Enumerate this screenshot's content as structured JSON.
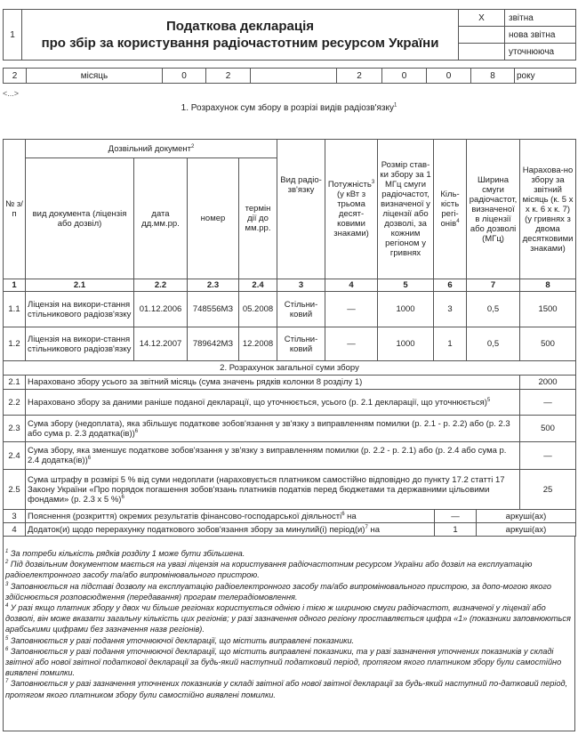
{
  "header": {
    "row_number": "1",
    "title_line1": "Податкова декларація",
    "title_line2": "про збір за користування радіочастотним ресурсом України",
    "types": [
      {
        "mark": "X",
        "label": "звітна"
      },
      {
        "mark": "",
        "label": "нова звітна"
      },
      {
        "mark": "",
        "label": "уточнююча"
      }
    ]
  },
  "period": {
    "row_number": "2",
    "month_label": "місяць",
    "month_digits": [
      "0",
      "2"
    ],
    "year_digits": [
      "2",
      "0",
      "0",
      "8"
    ],
    "year_label": "року"
  },
  "ellipsis": "<...>",
  "section1": {
    "title": "1. Розрахунок сум збору в розрізі видів радіозв'язку",
    "title_sup": "1",
    "headers": {
      "num": "№ з/п",
      "permit_group": "Дозвільний документ",
      "permit_group_sup": "2",
      "doc_type": "вид документа (ліцензія або дозвіл)",
      "date": "дата дд.мм.рр.",
      "number": "номер",
      "term": "термін дії до мм.рр.",
      "radio_type": "Вид радіо-зв'язку",
      "power": "Потужність",
      "power_sup": "3",
      "power_rest": "(у кВт з трьома десят-ковими знаками)",
      "rate": "Розмір став-ки збору за 1 МГц смуги радіочастот, визначеної у ліцензії або дозволі, за кожним регіоном у гривнях",
      "regions": "Кіль-кість регі-онів",
      "regions_sup": "4",
      "bandwidth": "Ширина смуги радіочастот, визначеної в ліцензії або дозволі (МГц)",
      "accrued": "Нарахова-но збору за звітний місяць (к. 5 х х к. 6 х к. 7) (у гривнях з двома десятковими знаками)"
    },
    "column_numbers": [
      "1",
      "2.1",
      "2.2",
      "2.3",
      "2.4",
      "3",
      "4",
      "5",
      "6",
      "7",
      "8"
    ],
    "rows": [
      {
        "num": "1.1",
        "doc_type": "Ліцензія на викори-стання стільникового радіозв'язку",
        "date": "01.12.2006",
        "number": "748556МЗ",
        "term": "05.2008",
        "radio_type": "Стільни-ковий",
        "power": "—",
        "rate": "1000",
        "regions": "3",
        "bandwidth": "0,5",
        "accrued": "1500"
      },
      {
        "num": "1.2",
        "doc_type": "Ліцензія на викори-стання стільникового радіозв'язку",
        "date": "14.12.2007",
        "number": "789642МЗ",
        "term": "12.2008",
        "radio_type": "Стільни-ковий",
        "power": "—",
        "rate": "1000",
        "regions": "1",
        "bandwidth": "0,5",
        "accrued": "500"
      }
    ]
  },
  "section2": {
    "title": "2. Розрахунок загальної суми збору",
    "rows": [
      {
        "num": "2.1",
        "text": "Нараховано збору усього за звітний місяць (сума значень рядків колонки 8 розділу 1)",
        "sup": "",
        "value": "2000"
      },
      {
        "num": "2.2",
        "text": "Нараховано збору за даними раніше поданої декларації, що уточнюється, усього (р. 2.1 декларації, що уточнюється)",
        "sup": "5",
        "value": "—"
      },
      {
        "num": "2.3",
        "text": "Сума збору (недоплата), яка збільшує податкове зобов'язання у зв'язку з виправленням помилки (р. 2.1 - р. 2.2) або (р. 2.3 або сума р. 2.3 додатка(ів))",
        "sup": "6",
        "value": "500"
      },
      {
        "num": "2.4",
        "text": "Сума збору, яка зменшує податкове зобов'язання у зв'язку з виправленням помилки (р. 2.2 - р. 2.1) або (р. 2.4 або сума р. 2.4 додатка(ів))",
        "sup": "6",
        "value": "—"
      },
      {
        "num": "2.5",
        "text": "Сума штрафу в розмірі 5 % від суми недоплати (нараховується платником самостійно відповідно до пункту 17.2 статті 17 Закону України «Про порядок погашення зобов'язань платників податків перед бюджетами та державними цільовими фондами» (р. 2.3 х 5 %)",
        "sup": "6",
        "value": "25"
      }
    ]
  },
  "extra_rows": [
    {
      "num": "3",
      "text": "Пояснення (розкриття) окремих результатів фінансово-господарської діяльності",
      "sup": "6",
      "after": " на",
      "count": "—",
      "unit": "аркуші(ах)"
    },
    {
      "num": "4",
      "text": "Додаток(и) щодо перерахунку податкового зобов'язання збору за минулий(і) період(и)",
      "sup": "7",
      "after": " на",
      "count": "1",
      "unit": "аркуші(ах)"
    }
  ],
  "footnotes": [
    {
      "sup": "1",
      "text": "За потреби кількість рядків розділу 1 може бути збільшена."
    },
    {
      "sup": "2",
      "text": "Під дозвільним документом мається на увазі ліцензія на користування радіочастотним ресурсом України або дозвіл на експлуатацію радіоелектронного засобу та/або випромінювального пристрою."
    },
    {
      "sup": "3",
      "text": "Заповнюється на підставі дозволу на експлуатацію радіоелектронного засобу та/або випромінювального пристрою, за допо-могою якого здійснюється розповсюдження (передавання) програм телерадіомовлення."
    },
    {
      "sup": "4",
      "text": "У разі якщо платник збору у двох чи більше регіонах користується однією і тією ж шириною смуги радіочастот, визначеної у ліцензії або дозволі, він може вказати загальну кількість цих регіонів; у разі зазначення одного регіону проставляється цифра «1» (показники заповнюються арабськими цифрами без зазначення назв регіонів)."
    },
    {
      "sup": "5",
      "text": "Заповнюється у разі подання уточнюючої декларації, що містить виправлені показники."
    },
    {
      "sup": "6",
      "text": "Заповнюється у разі подання уточнюючої декларації, що містить виправлені показники, та у разі зазначення уточнених показників у складі звітної або нової звітної податкової декларації за будь-який наступний податковий період, протягом якого платником збору були самостійно виявлені помилки."
    },
    {
      "sup": "7",
      "text": "Заповнюється у разі зазначення уточнених показників у складі звітної або нової звітної декларації за будь-який наступний по-датковий період, протягом якого платником збору були самостійно виявлені помилки."
    }
  ]
}
